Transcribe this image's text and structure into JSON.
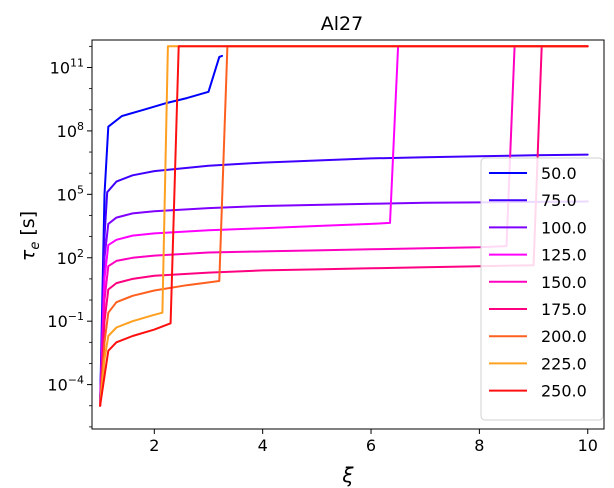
{
  "chart_data": {
    "type": "line",
    "title": "Al27",
    "xlabel": "ξ",
    "ylabel_symbol": "τ",
    "ylabel_subscript": "e",
    "ylabel_unit": " [s]",
    "yscale": "log",
    "xlim": [
      0.85,
      10.3
    ],
    "ylim_log10": [
      -6.1,
      12.3
    ],
    "x_ticks": [
      2,
      4,
      6,
      8,
      10
    ],
    "y_ticks": [
      {
        "exp": 11,
        "mantissa": "10",
        "label": "11"
      },
      {
        "exp": 8,
        "mantissa": "10",
        "label": "8"
      },
      {
        "exp": 5,
        "mantissa": "10",
        "label": "5"
      },
      {
        "exp": 2,
        "mantissa": "10",
        "label": "2"
      },
      {
        "exp": -1,
        "mantissa": "10",
        "label": "−1"
      },
      {
        "exp": -4,
        "mantissa": "10",
        "label": "−4"
      }
    ],
    "grid": false,
    "legend_position": "right",
    "series": [
      {
        "name": "50.0",
        "color": "#0000ff",
        "x": [
          1.0,
          1.08,
          1.15,
          1.4,
          1.8,
          2.2,
          2.6,
          3.0,
          3.2,
          3.25
        ],
        "log10_y": [
          -5.0,
          5.0,
          8.2,
          8.7,
          9.0,
          9.3,
          9.55,
          9.85,
          11.5,
          11.55
        ]
      },
      {
        "name": "75.0",
        "color": "#4000ff",
        "x": [
          1.0,
          1.08,
          1.13,
          1.3,
          1.6,
          2.0,
          3.0,
          4.0,
          5.0,
          6.0,
          7.0,
          8.0,
          9.0,
          10.0
        ],
        "log10_y": [
          -5.0,
          3.0,
          5.1,
          5.6,
          5.9,
          6.1,
          6.35,
          6.5,
          6.6,
          6.7,
          6.75,
          6.8,
          6.85,
          6.88
        ]
      },
      {
        "name": "100.0",
        "color": "#8000ff",
        "x": [
          1.0,
          1.08,
          1.15,
          1.3,
          1.6,
          2.0,
          3.0,
          4.0,
          5.0,
          6.0,
          7.0,
          8.0,
          9.0,
          10.0
        ],
        "log10_y": [
          -5.0,
          2.0,
          3.6,
          3.9,
          4.1,
          4.2,
          4.35,
          4.45,
          4.5,
          4.55,
          4.6,
          4.62,
          4.64,
          4.66
        ]
      },
      {
        "name": "125.0",
        "color": "#ff00ff",
        "x": [
          1.0,
          1.08,
          1.15,
          1.3,
          1.6,
          2.0,
          3.0,
          4.0,
          5.0,
          6.0,
          6.35,
          6.5,
          6.55,
          10.0
        ],
        "log10_y": [
          -5.0,
          1.0,
          2.6,
          2.85,
          3.05,
          3.15,
          3.3,
          3.4,
          3.5,
          3.6,
          3.65,
          12.0,
          12.0,
          12.0
        ]
      },
      {
        "name": "150.0",
        "color": "#ff00c0",
        "x": [
          1.0,
          1.08,
          1.15,
          1.3,
          1.6,
          2.0,
          3.0,
          4.0,
          5.0,
          6.0,
          7.0,
          8.0,
          8.5,
          8.65,
          8.7,
          10.0
        ],
        "log10_y": [
          -5.0,
          0.0,
          1.6,
          1.85,
          2.0,
          2.1,
          2.25,
          2.3,
          2.35,
          2.4,
          2.45,
          2.5,
          2.55,
          12.0,
          12.0,
          12.0
        ]
      },
      {
        "name": "175.0",
        "color": "#ff0080",
        "x": [
          1.0,
          1.08,
          1.15,
          1.3,
          1.6,
          2.0,
          3.0,
          4.0,
          5.0,
          6.0,
          7.0,
          8.0,
          9.0,
          9.15,
          9.2,
          10.0
        ],
        "log10_y": [
          -5.0,
          -1.0,
          0.5,
          0.8,
          1.0,
          1.15,
          1.3,
          1.4,
          1.45,
          1.5,
          1.55,
          1.6,
          1.65,
          12.0,
          12.0,
          12.0
        ]
      },
      {
        "name": "200.0",
        "color": "#ff6020",
        "x": [
          1.0,
          1.08,
          1.15,
          1.3,
          1.6,
          2.0,
          2.6,
          3.2,
          3.35,
          3.4,
          10.0
        ],
        "log10_y": [
          -5.0,
          -2.0,
          -0.6,
          -0.1,
          0.2,
          0.45,
          0.7,
          0.9,
          12.0,
          12.0,
          12.0
        ]
      },
      {
        "name": "225.0",
        "color": "#ffa020",
        "x": [
          1.0,
          1.08,
          1.15,
          1.3,
          1.6,
          2.0,
          2.15,
          2.25,
          2.3,
          10.0
        ],
        "log10_y": [
          -5.0,
          -2.8,
          -1.7,
          -1.3,
          -1.0,
          -0.7,
          -0.6,
          12.0,
          12.0,
          12.0
        ]
      },
      {
        "name": "250.0",
        "color": "#ff1010",
        "x": [
          1.0,
          1.08,
          1.15,
          1.3,
          1.6,
          2.0,
          2.3,
          2.45,
          2.5,
          10.0
        ],
        "log10_y": [
          -5.0,
          -3.6,
          -2.4,
          -2.0,
          -1.7,
          -1.4,
          -1.1,
          12.0,
          12.0,
          12.0
        ]
      }
    ]
  }
}
